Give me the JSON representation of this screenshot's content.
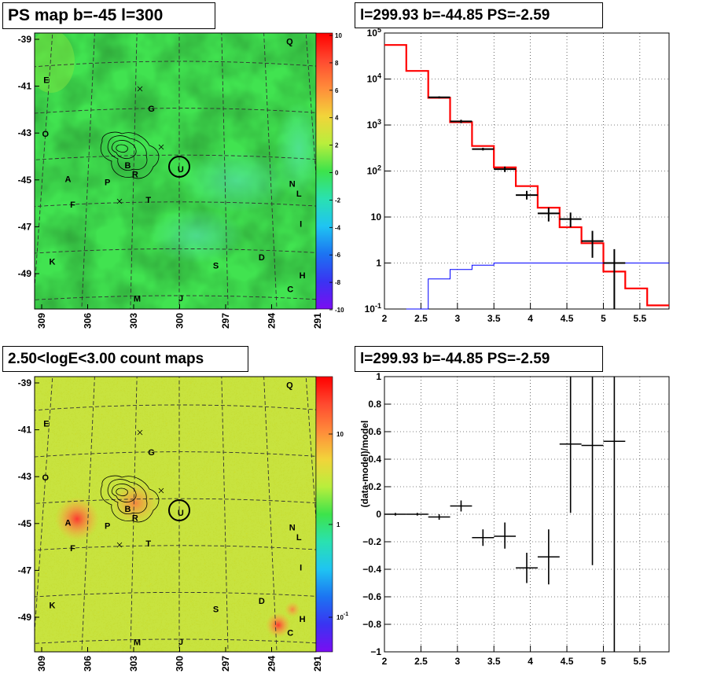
{
  "panels": {
    "tl_title": "PS map b=-45 l=300",
    "tr_title": "l=299.93 b=-44.85 PS=-2.59",
    "bl_title": "2.50<logE<3.00 count maps",
    "br_title": "l=299.93 b=-44.85 PS=-2.59"
  },
  "maps": {
    "y_ticks": [
      "-39",
      "-41",
      "-43",
      "-45",
      "-47",
      "-49"
    ],
    "x_ticks": [
      "309",
      "306",
      "303",
      "300",
      "297",
      "294",
      "291"
    ],
    "source_labels": [
      {
        "t": "Q",
        "lon": 292.2,
        "lat": -39.0
      },
      {
        "t": "E",
        "lon": 309.2,
        "lat": -40.6
      },
      {
        "t": "G",
        "lon": 301.9,
        "lat": -42.0
      },
      {
        "t": "O",
        "lon": 309.0,
        "lat": -42.9
      },
      {
        "t": "B",
        "lon": 303.4,
        "lat": -44.4
      },
      {
        "t": "R",
        "lon": 302.9,
        "lat": -44.8
      },
      {
        "t": "U",
        "lon": 299.9,
        "lat": -44.6
      },
      {
        "t": "A",
        "lon": 307.3,
        "lat": -44.9
      },
      {
        "t": "P",
        "lon": 304.7,
        "lat": -45.1
      },
      {
        "t": "N",
        "lon": 292.6,
        "lat": -45.1
      },
      {
        "t": "L",
        "lon": 292.2,
        "lat": -45.5
      },
      {
        "t": "F",
        "lon": 306.9,
        "lat": -46.0
      },
      {
        "t": "T",
        "lon": 302.0,
        "lat": -45.9
      },
      {
        "t": "I",
        "lon": 292.2,
        "lat": -46.8
      },
      {
        "t": "K",
        "lon": 308.0,
        "lat": -48.4
      },
      {
        "t": "S",
        "lon": 297.7,
        "lat": -48.7
      },
      {
        "t": "D",
        "lon": 294.8,
        "lat": -48.3
      },
      {
        "t": "H",
        "lon": 292.3,
        "lat": -49.0
      },
      {
        "t": "C",
        "lon": 293.1,
        "lat": -49.6
      },
      {
        "t": "M",
        "lon": 302.6,
        "lat": -50.1
      },
      {
        "t": "J",
        "lon": 299.9,
        "lat": -50.1
      }
    ],
    "tl_colorbar": [
      "10",
      "8",
      "6",
      "4",
      "2",
      "0",
      "-2",
      "-4",
      "-6",
      "-8",
      "-10"
    ],
    "bl_colorbar": [
      "10",
      "1",
      "10^-1"
    ],
    "colors": {
      "tl_base": "#41e350",
      "bl_base": "#c4e23f"
    }
  },
  "chart_data": [
    {
      "type": "line",
      "panel": "spectrum",
      "title": "l=299.93 b=-44.85 PS=-2.59",
      "x_ticks": [
        2,
        2.5,
        3,
        3.5,
        4,
        4.5,
        5,
        5.5
      ],
      "xlim": [
        2,
        5.9
      ],
      "ylim": [
        0.1,
        100000
      ],
      "log_y": true,
      "y_ticks": [
        "10^-1",
        "1",
        "10",
        "10^2",
        "10^3",
        "10^4",
        "10^5"
      ],
      "grid": true,
      "series": [
        {
          "kind": "model-step",
          "color": "#ff0000",
          "edges": [
            2,
            2.3,
            2.6,
            2.9,
            3.2,
            3.5,
            3.8,
            4.1,
            4.4,
            4.7,
            5.0,
            5.3,
            5.6,
            5.9
          ],
          "values": [
            55000,
            15000,
            3900,
            1150,
            350,
            120,
            47,
            16,
            6,
            2.7,
            0.65,
            0.28,
            0.12
          ]
        },
        {
          "kind": "background-step",
          "color": "#0000ff",
          "edges": [
            2.3,
            2.6,
            2.9,
            3.2,
            3.5,
            5.9
          ],
          "values": [
            0.1,
            0.45,
            0.72,
            0.9,
            1.0
          ]
        },
        {
          "kind": "data",
          "color": "#000000",
          "points": [
            {
              "x": 2.75,
              "y": 4000,
              "xerr": 0.15,
              "ylo": 3800,
              "yhi": 4200
            },
            {
              "x": 3.05,
              "y": 1200,
              "xerr": 0.15,
              "ylo": 1100,
              "yhi": 1300
            },
            {
              "x": 3.35,
              "y": 300,
              "xerr": 0.15,
              "ylo": 280,
              "yhi": 320
            },
            {
              "x": 3.65,
              "y": 110,
              "xerr": 0.15,
              "ylo": 95,
              "yhi": 125
            },
            {
              "x": 3.95,
              "y": 30,
              "xerr": 0.15,
              "ylo": 24,
              "yhi": 37
            },
            {
              "x": 4.25,
              "y": 12,
              "xerr": 0.15,
              "ylo": 8,
              "yhi": 16
            },
            {
              "x": 4.55,
              "y": 9,
              "xerr": 0.15,
              "ylo": 6,
              "yhi": 12.5
            },
            {
              "x": 4.85,
              "y": 3,
              "xerr": 0.15,
              "ylo": 1.3,
              "yhi": 5
            },
            {
              "x": 5.15,
              "y": 1,
              "xerr": 0.15,
              "ylo": 0.1,
              "yhi": 2
            }
          ]
        }
      ]
    },
    {
      "type": "scatter",
      "panel": "residual",
      "title": "l=299.93 b=-44.85 PS=-2.59",
      "ylabel": "(data-model)/model",
      "xlim": [
        2,
        5.9
      ],
      "ylim": [
        -1,
        1
      ],
      "x_ticks": [
        2,
        2.5,
        3,
        3.5,
        4,
        4.5,
        5,
        5.5
      ],
      "y_ticks": [
        1,
        0.8,
        0.6,
        0.4,
        0.2,
        0,
        -0.2,
        -0.4,
        -0.6,
        -0.8,
        -1
      ],
      "grid": true,
      "points": [
        {
          "x": 2.15,
          "y": 0.0,
          "xerr": 0.15,
          "ylo": -0.01,
          "yhi": 0.01
        },
        {
          "x": 2.45,
          "y": 0.0,
          "xerr": 0.15,
          "ylo": -0.01,
          "yhi": 0.01
        },
        {
          "x": 2.75,
          "y": -0.02,
          "xerr": 0.15,
          "ylo": -0.04,
          "yhi": 0.0
        },
        {
          "x": 3.05,
          "y": 0.06,
          "xerr": 0.15,
          "ylo": 0.02,
          "yhi": 0.1
        },
        {
          "x": 3.35,
          "y": -0.17,
          "xerr": 0.15,
          "ylo": -0.23,
          "yhi": -0.11
        },
        {
          "x": 3.65,
          "y": -0.16,
          "xerr": 0.15,
          "ylo": -0.25,
          "yhi": -0.06
        },
        {
          "x": 3.95,
          "y": -0.39,
          "xerr": 0.15,
          "ylo": -0.5,
          "yhi": -0.28
        },
        {
          "x": 4.25,
          "y": -0.31,
          "xerr": 0.15,
          "ylo": -0.51,
          "yhi": -0.11
        },
        {
          "x": 4.55,
          "y": 0.51,
          "xerr": 0.15,
          "ylo": 0.01,
          "yhi": 1.0
        },
        {
          "x": 4.85,
          "y": 0.5,
          "xerr": 0.15,
          "ylo": -0.37,
          "yhi": 1.0
        },
        {
          "x": 5.15,
          "y": 0.53,
          "xerr": 0.15,
          "ylo": -1.0,
          "yhi": 1.0
        }
      ]
    }
  ]
}
